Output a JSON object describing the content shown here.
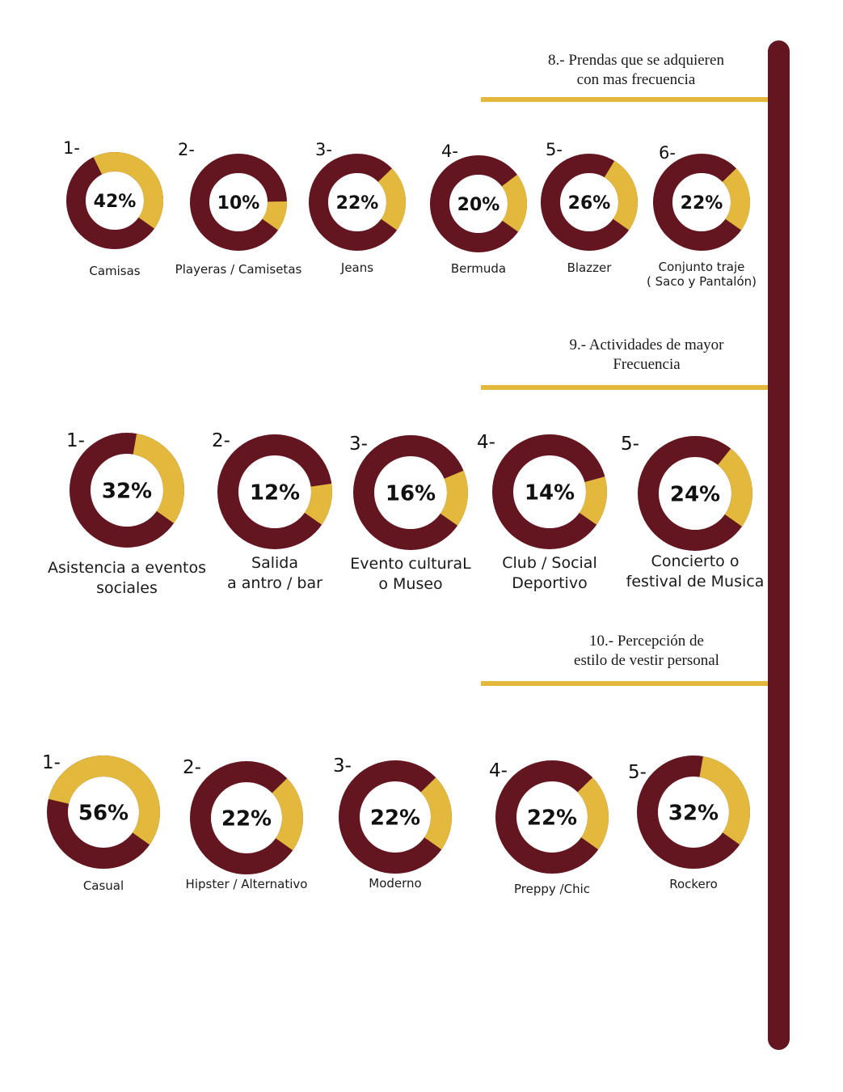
{
  "colors": {
    "primary": "#641620",
    "accent": "#e2b83d"
  },
  "sections": [
    {
      "title": [
        "8.- Prendas que se adquieren",
        "con mas frecuencia"
      ]
    },
    {
      "title": [
        "9.- Actividades de mayor",
        "Frecuencia"
      ]
    },
    {
      "title": [
        "10.- Percepción de",
        "estilo de vestir personal"
      ]
    }
  ],
  "chart_data": [
    {
      "type": "pie",
      "title": "8.- Prendas que se adquieren con mas frecuencia",
      "items": [
        {
          "number": "1-",
          "value": 42,
          "label": "42%",
          "category": [
            "Camisas"
          ]
        },
        {
          "number": "2-",
          "value": 10,
          "label": "10%",
          "category": [
            "Playeras / Camisetas"
          ]
        },
        {
          "number": "3-",
          "value": 22,
          "label": "22%",
          "category": [
            "Jeans"
          ]
        },
        {
          "number": "4-",
          "value": 20,
          "label": "20%",
          "category": [
            "Bermuda"
          ]
        },
        {
          "number": "5-",
          "value": 26,
          "label": "26%",
          "category": [
            "Blazzer"
          ]
        },
        {
          "number": "6-",
          "value": 22,
          "label": "22%",
          "category": [
            "Conjunto traje",
            "( Saco y Pantalón)"
          ]
        }
      ]
    },
    {
      "type": "pie",
      "title": "9.- Actividades de mayor Frecuencia",
      "items": [
        {
          "number": "1-",
          "value": 32,
          "label": "32%",
          "category": [
            "Asistencia a eventos",
            "sociales"
          ]
        },
        {
          "number": "2-",
          "value": 12,
          "label": "12%",
          "category": [
            "Salida",
            "a antro / bar"
          ]
        },
        {
          "number": "3-",
          "value": 16,
          "label": "16%",
          "category": [
            "Evento culturaL",
            "o Museo"
          ]
        },
        {
          "number": "4-",
          "value": 14,
          "label": "14%",
          "category": [
            "Club / Social",
            "Deportivo"
          ]
        },
        {
          "number": "5-",
          "value": 24,
          "label": "24%",
          "category": [
            "Concierto o",
            "festival de Musica"
          ]
        }
      ]
    },
    {
      "type": "pie",
      "title": "10.- Percepción de estilo de vestir personal",
      "items": [
        {
          "number": "1-",
          "value": 56,
          "label": "56%",
          "category": [
            "Casual"
          ]
        },
        {
          "number": "2-",
          "value": 22,
          "label": "22%",
          "category": [
            "Hipster / Alternativo"
          ]
        },
        {
          "number": "3-",
          "value": 22,
          "label": "22%",
          "category": [
            "Moderno"
          ]
        },
        {
          "number": "4-",
          "value": 22,
          "label": "22%",
          "category": [
            "Preppy /Chic"
          ]
        },
        {
          "number": "5-",
          "value": 32,
          "label": "32%",
          "category": [
            "Rockero"
          ]
        }
      ]
    }
  ]
}
